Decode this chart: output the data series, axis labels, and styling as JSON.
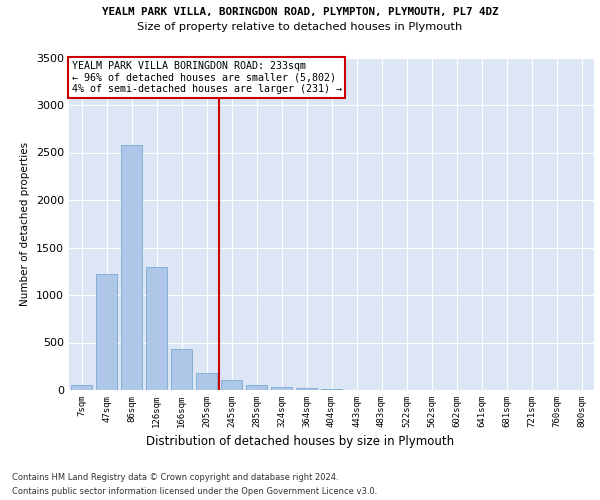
{
  "title1": "YEALM PARK VILLA, BORINGDON ROAD, PLYMPTON, PLYMOUTH, PL7 4DZ",
  "title2": "Size of property relative to detached houses in Plymouth",
  "xlabel": "Distribution of detached houses by size in Plymouth",
  "ylabel": "Number of detached properties",
  "categories": [
    "7sqm",
    "47sqm",
    "86sqm",
    "126sqm",
    "166sqm",
    "205sqm",
    "245sqm",
    "285sqm",
    "324sqm",
    "364sqm",
    "404sqm",
    "443sqm",
    "483sqm",
    "522sqm",
    "562sqm",
    "602sqm",
    "641sqm",
    "681sqm",
    "721sqm",
    "760sqm",
    "800sqm"
  ],
  "values": [
    50,
    1220,
    2580,
    1300,
    430,
    180,
    110,
    55,
    35,
    20,
    10,
    5,
    3,
    0,
    0,
    0,
    0,
    0,
    0,
    0,
    0
  ],
  "bar_color": "#aec6e8",
  "bar_edge_color": "#7aaad0",
  "vline_color": "#cc0000",
  "vline_x": 5.5,
  "annotation_text": "YEALM PARK VILLA BORINGDON ROAD: 233sqm\n← 96% of detached houses are smaller (5,802)\n4% of semi-detached houses are larger (231) →",
  "annotation_box_color": "#ffffff",
  "annotation_box_edge": "#cc0000",
  "ylim": [
    0,
    3500
  ],
  "yticks": [
    0,
    500,
    1000,
    1500,
    2000,
    2500,
    3000,
    3500
  ],
  "footer1": "Contains HM Land Registry data © Crown copyright and database right 2024.",
  "footer2": "Contains public sector information licensed under the Open Government Licence v3.0.",
  "fig_bg_color": "#ffffff",
  "plot_bg_color": "#dce6f5"
}
